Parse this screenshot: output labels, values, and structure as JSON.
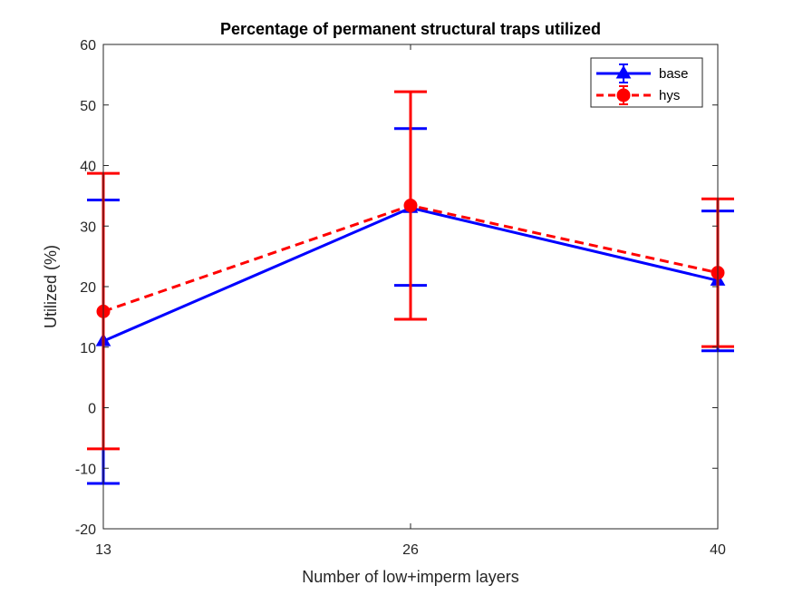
{
  "chart_data": {
    "type": "line",
    "title": "Percentage of permanent structural traps utilized",
    "xlabel": "Number of low+imperm layers",
    "ylabel": "Utilized (%)",
    "categories": [
      "13",
      "26",
      "40"
    ],
    "ylim": [
      -20,
      60
    ],
    "yticks": [
      -20,
      -10,
      0,
      10,
      20,
      30,
      40,
      50,
      60
    ],
    "grid": false,
    "legend_position": "top-right",
    "series": [
      {
        "name": "base",
        "color": "#0000ff",
        "line_style": "solid",
        "marker": "triangle",
        "values": [
          11,
          33,
          21
        ],
        "error_lower": [
          -12.5,
          20.2,
          9.4
        ],
        "error_upper": [
          34.3,
          46.1,
          32.5
        ]
      },
      {
        "name": "hys",
        "color": "#ff0000",
        "line_style": "dashed",
        "marker": "circle",
        "values": [
          15.9,
          33.4,
          22.3
        ],
        "error_lower": [
          -6.8,
          14.6,
          10.1
        ],
        "error_upper": [
          38.7,
          52.2,
          34.5
        ]
      }
    ]
  }
}
